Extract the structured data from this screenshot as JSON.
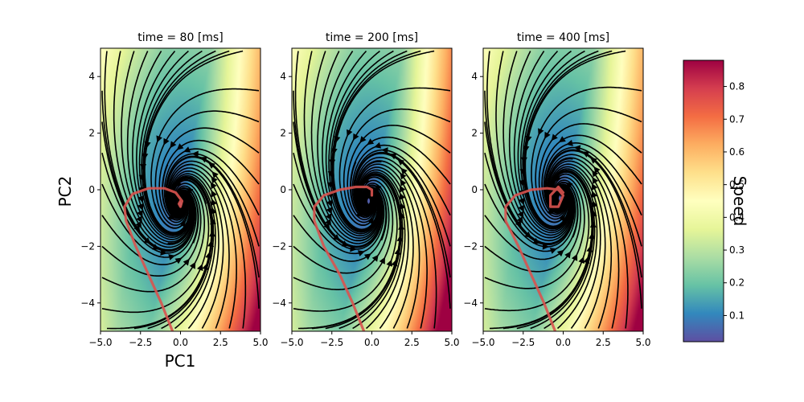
{
  "chart_data": {
    "type": "streamplot",
    "figure": {
      "xlabel": "PC1",
      "ylabel": "PC2",
      "colorbar_label": "Speed",
      "colorbar_range": [
        0.02,
        0.88
      ],
      "colorbar_ticks": [
        0.1,
        0.2,
        0.3,
        0.4,
        0.5,
        0.6,
        0.7,
        0.8
      ],
      "colorbar_tick_labels": [
        "0.1",
        "0.2",
        "0.3",
        "0.4",
        "0.5",
        "0.6",
        "0.7",
        "0.8"
      ],
      "colormap": [
        "#5e4fa2",
        "#3288bd",
        "#66c2a5",
        "#abdda4",
        "#e6f598",
        "#ffffbf",
        "#fee08b",
        "#fdae61",
        "#f46d43",
        "#d53e4f",
        "#9e0142"
      ],
      "stream_color": "#000000",
      "trajectory_color": "#d9534f"
    },
    "panels": [
      {
        "title": "time = 80 [ms]",
        "xlim": [
          -5,
          5
        ],
        "ylim": [
          -5,
          5
        ],
        "xticks": [
          -5,
          -2.5,
          0,
          2.5,
          5
        ],
        "xtick_labels": [
          "−5.0",
          "−2.5",
          "0.0",
          "2.5",
          "5.0"
        ],
        "yticks": [
          -4,
          -2,
          0,
          2,
          4
        ],
        "ytick_labels": [
          "−4",
          "−2",
          "0",
          "2",
          "4"
        ],
        "fixed_point": [
          0,
          -0.5
        ],
        "trajectory": [
          [
            -0.5,
            -5
          ],
          [
            -1.2,
            -4
          ],
          [
            -2.0,
            -3.0
          ],
          [
            -2.8,
            -2.0
          ],
          [
            -3.4,
            -1.1
          ],
          [
            -3.5,
            -0.6
          ],
          [
            -3.0,
            -0.15
          ],
          [
            -2.0,
            0.05
          ],
          [
            -1.0,
            0.05
          ],
          [
            -0.3,
            -0.1
          ],
          [
            0.1,
            -0.4
          ],
          [
            0.0,
            -0.6
          ],
          [
            -0.1,
            -0.5
          ],
          [
            0.0,
            -0.4
          ]
        ]
      },
      {
        "title": "time = 200 [ms]",
        "xlim": [
          -5,
          5
        ],
        "ylim": [
          -5,
          5
        ],
        "xticks": [
          -5,
          -2.5,
          0,
          2.5,
          5
        ],
        "xtick_labels": [
          "−5.0",
          "−2.5",
          "0.0",
          "2.5",
          "5.0"
        ],
        "yticks": [
          -4,
          -2,
          0,
          2,
          4
        ],
        "ytick_labels": [
          "−4",
          "−2",
          "0",
          "2",
          "4"
        ],
        "fixed_point": [
          -0.2,
          -0.4
        ],
        "trajectory": [
          [
            -0.5,
            -5
          ],
          [
            -1.2,
            -4
          ],
          [
            -2.0,
            -3.0
          ],
          [
            -3.0,
            -2.0
          ],
          [
            -3.6,
            -1.1
          ],
          [
            -3.6,
            -0.6
          ],
          [
            -3.0,
            -0.2
          ],
          [
            -2.0,
            0.0
          ],
          [
            -1.0,
            0.1
          ],
          [
            -0.3,
            0.1
          ],
          [
            0.0,
            0.0
          ],
          [
            0.0,
            -0.2
          ]
        ]
      },
      {
        "title": "time = 400 [ms]",
        "xlim": [
          -5,
          5
        ],
        "ylim": [
          -5,
          5
        ],
        "xticks": [
          -5,
          -2.5,
          0,
          2.5,
          5
        ],
        "xtick_labels": [
          "−5.0",
          "−2.5",
          "0.0",
          "2.5",
          "5.0"
        ],
        "yticks": [
          -4,
          -2,
          0,
          2,
          4
        ],
        "ytick_labels": [
          "−4",
          "−2",
          "0",
          "2",
          "4"
        ],
        "fixed_point": [
          -0.2,
          -0.3
        ],
        "trajectory": [
          [
            -0.5,
            -5
          ],
          [
            -1.2,
            -4
          ],
          [
            -2.0,
            -3.0
          ],
          [
            -2.8,
            -2.0
          ],
          [
            -3.6,
            -1.1
          ],
          [
            -3.6,
            -0.6
          ],
          [
            -3.0,
            -0.2
          ],
          [
            -2.0,
            0.0
          ],
          [
            -1.0,
            0.05
          ],
          [
            -0.3,
            0.0
          ],
          [
            0.0,
            -0.2
          ],
          [
            -0.3,
            -0.6
          ],
          [
            -0.8,
            -0.6
          ],
          [
            -0.8,
            -0.2
          ],
          [
            -0.3,
            0.1
          ],
          [
            0.0,
            -0.1
          ]
        ]
      }
    ]
  }
}
